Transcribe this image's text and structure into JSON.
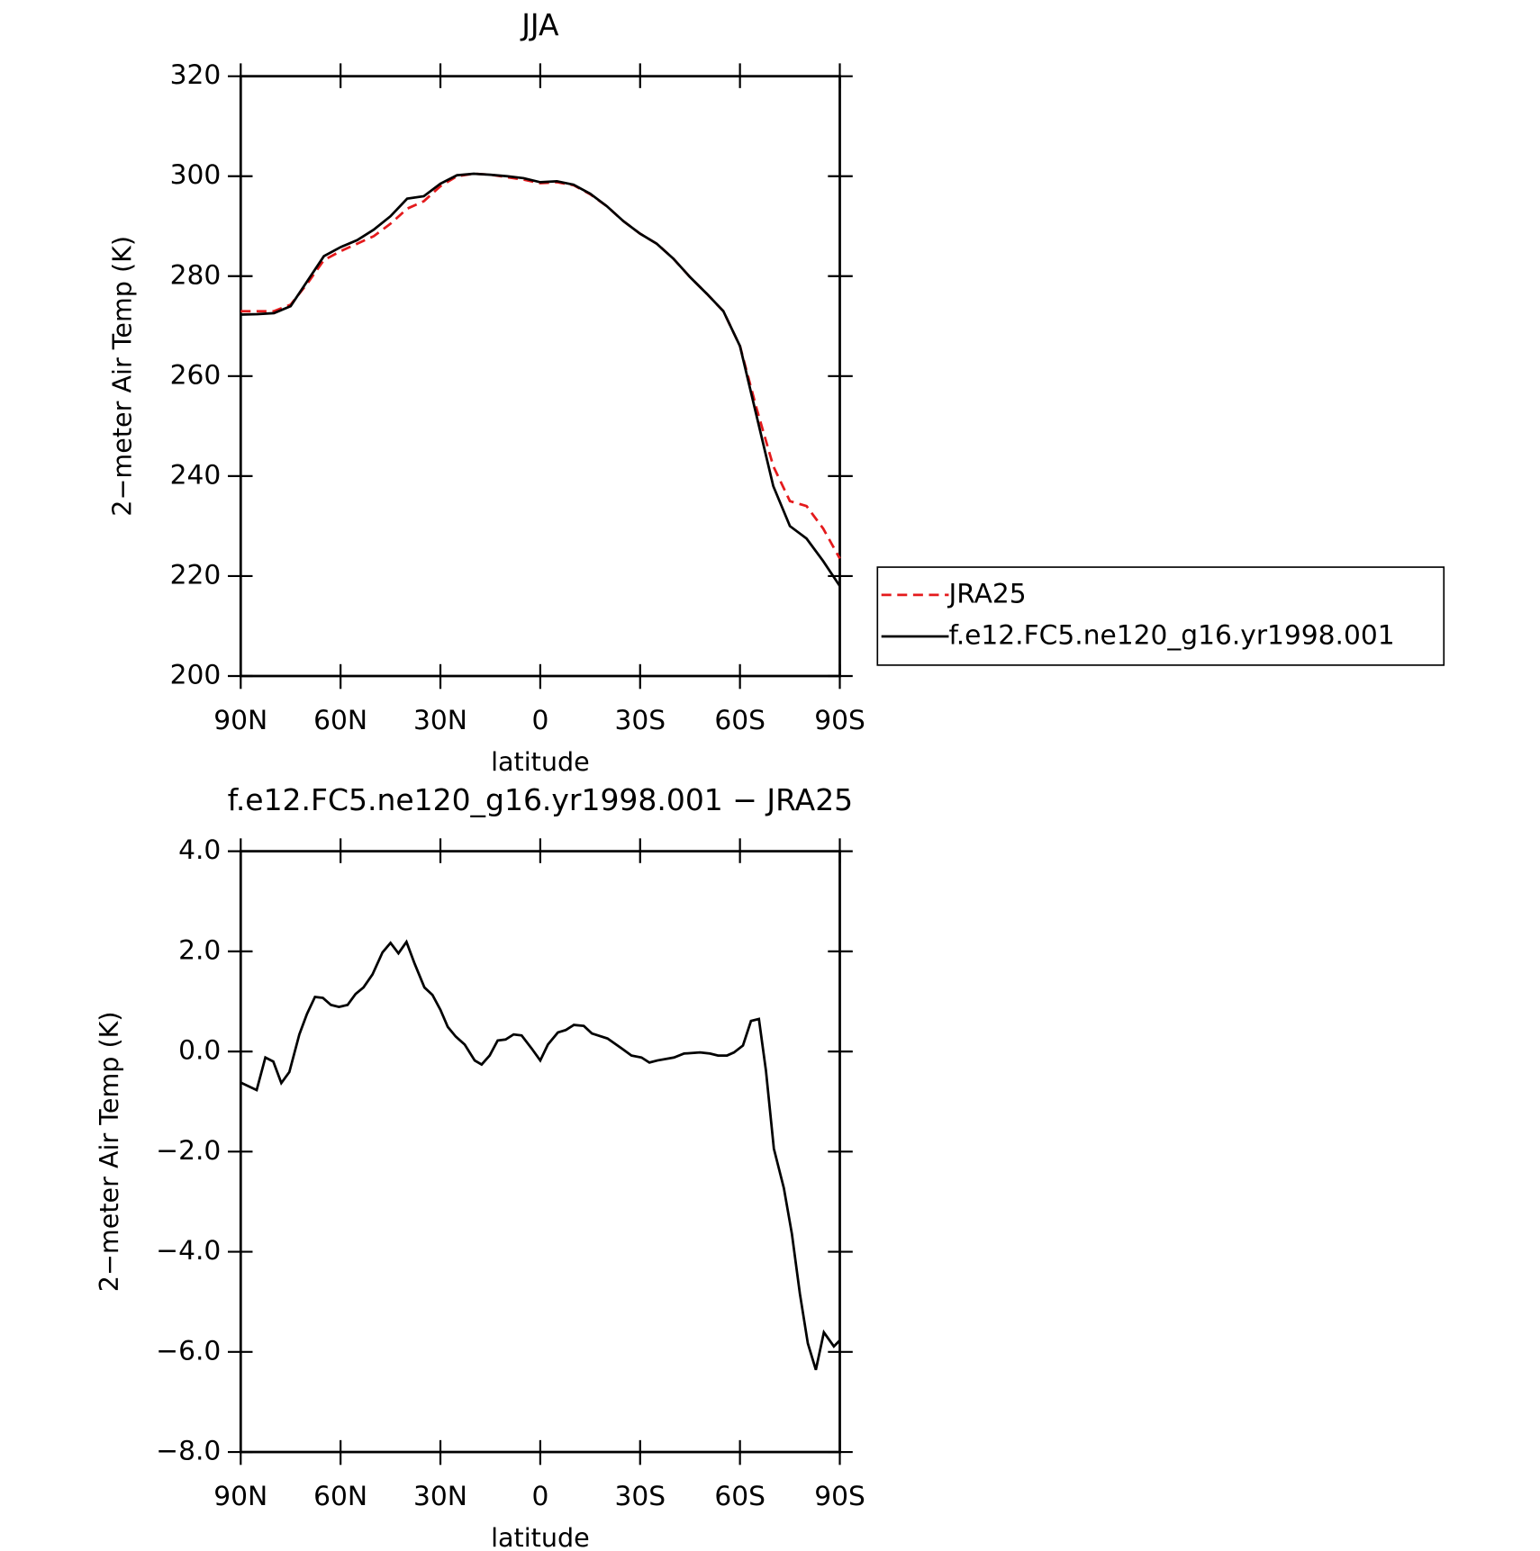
{
  "chart_data": [
    {
      "type": "line",
      "title": "JJA",
      "xlabel": "latitude",
      "ylabel": "2−meter Air Temp (K)",
      "x": [
        90,
        85,
        80,
        75,
        70,
        65,
        60,
        55,
        50,
        45,
        40,
        35,
        30,
        25,
        20,
        15,
        10,
        5,
        0,
        -5,
        -10,
        -15,
        -20,
        -25,
        -30,
        -35,
        -40,
        -45,
        -50,
        -55,
        -60,
        -65,
        -70,
        -75,
        -80,
        -85,
        -90
      ],
      "series": [
        {
          "name": "JRA25",
          "color": "#e41a1c",
          "style": "dashed",
          "values": [
            273,
            273,
            273,
            274.3,
            278.5,
            283.2,
            285,
            286.5,
            288,
            290.5,
            293.5,
            295,
            298,
            300,
            300.5,
            300.3,
            299.8,
            299.3,
            298.6,
            298.8,
            298.2,
            296.4,
            294,
            291,
            288.5,
            286.5,
            283.5,
            279.8,
            276.5,
            273,
            266,
            253.5,
            242,
            235,
            234,
            229.5,
            223.5
          ]
        },
        {
          "name": "f.e12.FC5.ne120_g16.yr1998.001",
          "color": "#000000",
          "style": "solid",
          "values": [
            272.3,
            272.4,
            272.6,
            274,
            279,
            284,
            285.8,
            287.2,
            289.3,
            292,
            295.5,
            296,
            298.5,
            300.2,
            300.5,
            300.3,
            300,
            299.6,
            298.8,
            299,
            298.3,
            296.5,
            294,
            291,
            288.5,
            286.5,
            283.5,
            279.8,
            276.5,
            273,
            266,
            252,
            238,
            230,
            227.5,
            223,
            218
          ]
        }
      ],
      "xlim": [
        90,
        -90
      ],
      "xticks": [
        {
          "value": 90,
          "label": "90N"
        },
        {
          "value": 60,
          "label": "60N"
        },
        {
          "value": 30,
          "label": "30N"
        },
        0,
        {
          "value": -30,
          "label": "30S"
        },
        {
          "value": -60,
          "label": "60S"
        },
        {
          "value": -90,
          "label": "90S"
        }
      ],
      "ylim": [
        200,
        320
      ],
      "yticks": [
        200,
        220,
        240,
        260,
        280,
        300,
        320
      ],
      "legend": "outside right",
      "grid": false
    },
    {
      "type": "line",
      "title": "f.e12.FC5.ne120_g16.yr1998.001 − JRA25",
      "xlabel": "latitude",
      "ylabel": "2−meter Air Temp (K)",
      "x": [
        90,
        85.2,
        82.6,
        80.2,
        77.8,
        75.4,
        72.4,
        70.1,
        67.7,
        65.3,
        62.9,
        60.5,
        57.9,
        55.5,
        53.1,
        50.4,
        47.4,
        45,
        42.6,
        40.2,
        37.8,
        34.8,
        32.4,
        30,
        27.8,
        25.4,
        22.7,
        19.7,
        17.6,
        15.2,
        12.8,
        10.4,
        8,
        5.6,
        2.6,
        0,
        -2.3,
        -5.3,
        -7.7,
        -10.1,
        -13.1,
        -15.5,
        -20.2,
        -24.5,
        -27.4,
        -30.4,
        -32.8,
        -35.2,
        -40.2,
        -43.2,
        -48,
        -51,
        -53.4,
        -56.1,
        -58.2,
        -60.9,
        -63.3,
        -65.7,
        -67.8,
        -70.2,
        -73.2,
        -75.6,
        -78,
        -80.4,
        -82.8,
        -85.2,
        -88.2,
        -90
      ],
      "color": "#000000",
      "values": [
        -0.62,
        -0.77,
        -0.12,
        -0.2,
        -0.63,
        -0.41,
        0.34,
        0.75,
        1.09,
        1.07,
        0.93,
        0.89,
        0.93,
        1.15,
        1.28,
        1.54,
        1.98,
        2.17,
        1.96,
        2.19,
        1.76,
        1.28,
        1.13,
        0.83,
        0.49,
        0.3,
        0.14,
        -0.18,
        -0.26,
        -0.08,
        0.22,
        0.24,
        0.34,
        0.32,
        0.06,
        -0.18,
        0.14,
        0.38,
        0.43,
        0.53,
        0.51,
        0.36,
        0.26,
        0.06,
        -0.08,
        -0.12,
        -0.22,
        -0.18,
        -0.12,
        -0.04,
        -0.02,
        -0.04,
        -0.08,
        -0.08,
        -0.02,
        0.12,
        0.61,
        0.65,
        -0.38,
        -1.94,
        -2.73,
        -3.64,
        -4.84,
        -5.83,
        -6.36,
        -5.61,
        -5.89,
        -5.77
      ],
      "xlim": [
        90,
        -90
      ],
      "xticks": [
        {
          "value": 90,
          "label": "90N"
        },
        {
          "value": 60,
          "label": "60N"
        },
        {
          "value": 30,
          "label": "30N"
        },
        0,
        {
          "value": -30,
          "label": "30S"
        },
        {
          "value": -60,
          "label": "60S"
        },
        {
          "value": -90,
          "label": "90S"
        }
      ],
      "ylim": [
        -8,
        4
      ],
      "yticks": [
        {
          "value": -8,
          "label": "−8.0"
        },
        {
          "value": -6,
          "label": "−6.0"
        },
        {
          "value": -4,
          "label": "−4.0"
        },
        {
          "value": -2,
          "label": "−2.0"
        },
        {
          "value": 0,
          "label": "0.0"
        },
        {
          "value": 2,
          "label": "2.0"
        },
        {
          "value": 4,
          "label": "4.0"
        }
      ],
      "grid": false
    }
  ]
}
